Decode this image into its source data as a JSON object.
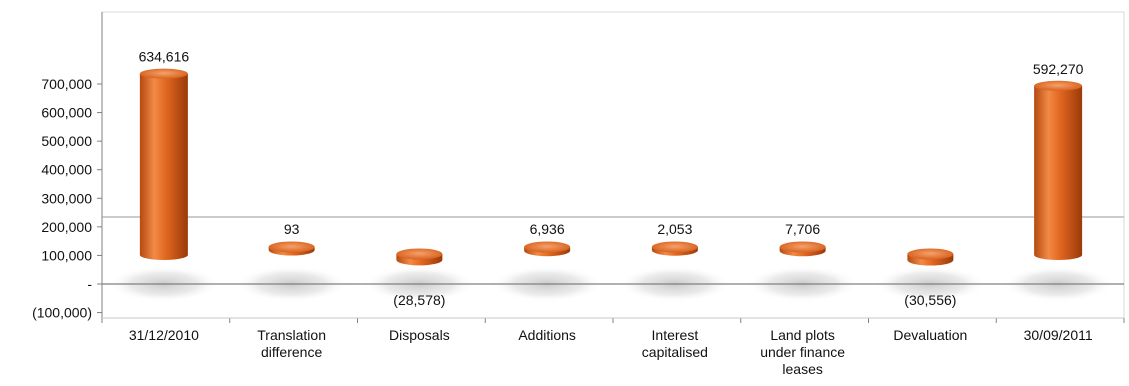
{
  "chart_data": {
    "type": "bar",
    "categories": [
      "31/12/2010",
      "Translation difference",
      "Disposals",
      "Additions",
      "Interest capitalised",
      "Land plots under finance leases",
      "Devaluation",
      "30/09/2011"
    ],
    "category_lines": [
      [
        "31/12/2010"
      ],
      [
        "Translation",
        "difference"
      ],
      [
        "Disposals"
      ],
      [
        "Additions"
      ],
      [
        "Interest",
        "capitalised"
      ],
      [
        "Land plots",
        "under finance",
        "leases"
      ],
      [
        "Devaluation"
      ],
      [
        "30/09/2011"
      ]
    ],
    "values": [
      634616,
      93,
      -28578,
      6936,
      2053,
      7706,
      -30556,
      592270
    ],
    "data_labels": [
      "634,616",
      "93",
      "(28,578)",
      "6,936",
      "2,053",
      "7,706",
      "(30,556)",
      "592,270"
    ],
    "y_ticks": [
      {
        "value": 700000,
        "label": "700,000"
      },
      {
        "value": 600000,
        "label": "600,000"
      },
      {
        "value": 500000,
        "label": "500,000"
      },
      {
        "value": 400000,
        "label": "400,000"
      },
      {
        "value": 300000,
        "label": "300,000"
      },
      {
        "value": 200000,
        "label": "200,000"
      },
      {
        "value": 100000,
        "label": "100,000"
      },
      {
        "value": 0,
        "label": "-"
      },
      {
        "value": -100000,
        "label": "(100,000)"
      }
    ],
    "ylim": [
      -100000,
      900000
    ],
    "title": "",
    "xlabel": "",
    "ylabel": "",
    "colors": {
      "bar": "#e0661f",
      "bar_dark": "#a8400c",
      "bar_light": "#f6a16a",
      "axis": "#808080"
    }
  }
}
